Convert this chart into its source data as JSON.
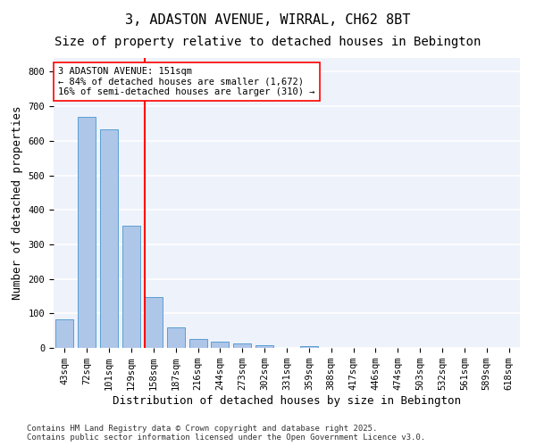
{
  "title": "3, ADASTON AVENUE, WIRRAL, CH62 8BT",
  "subtitle": "Size of property relative to detached houses in Bebington",
  "xlabel": "Distribution of detached houses by size in Bebington",
  "ylabel": "Number of detached properties",
  "categories": [
    "43sqm",
    "72sqm",
    "101sqm",
    "129sqm",
    "158sqm",
    "187sqm",
    "216sqm",
    "244sqm",
    "273sqm",
    "302sqm",
    "331sqm",
    "359sqm",
    "388sqm",
    "417sqm",
    "446sqm",
    "474sqm",
    "503sqm",
    "532sqm",
    "561sqm",
    "589sqm",
    "618sqm"
  ],
  "values": [
    83,
    670,
    633,
    354,
    148,
    59,
    27,
    18,
    13,
    7,
    0,
    5,
    0,
    0,
    0,
    0,
    0,
    0,
    0,
    0,
    0
  ],
  "bar_color": "#aec6e8",
  "bar_edge_color": "#5a9fd4",
  "vline_index": 4,
  "vline_color": "red",
  "annotation_text": "3 ADASTON AVENUE: 151sqm\n← 84% of detached houses are smaller (1,672)\n16% of semi-detached houses are larger (310) →",
  "annotation_box_color": "white",
  "annotation_box_edge_color": "red",
  "ylim": [
    0,
    840
  ],
  "yticks": [
    0,
    100,
    200,
    300,
    400,
    500,
    600,
    700,
    800
  ],
  "background_color": "#eef2fb",
  "footer_text": "Contains HM Land Registry data © Crown copyright and database right 2025.\nContains public sector information licensed under the Open Government Licence v3.0.",
  "grid_color": "white",
  "title_fontsize": 11,
  "subtitle_fontsize": 10,
  "xlabel_fontsize": 9,
  "ylabel_fontsize": 9,
  "tick_fontsize": 7.5,
  "footer_fontsize": 6.5,
  "annotation_fontsize": 7.5
}
